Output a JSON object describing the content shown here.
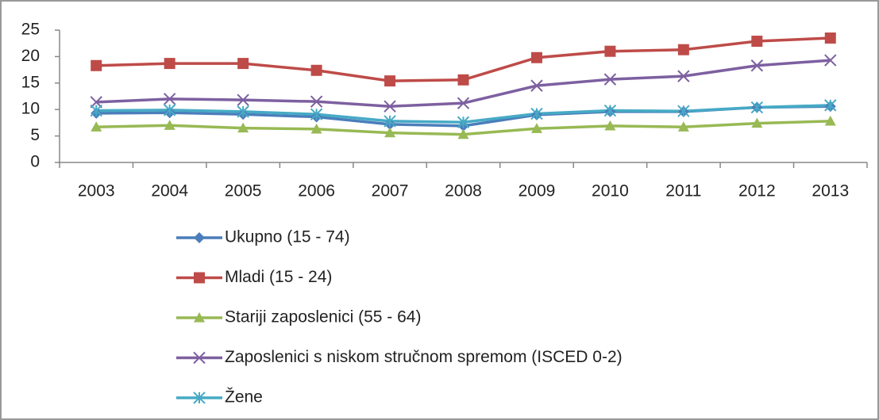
{
  "chart_data": {
    "type": "line",
    "categories": [
      "2003",
      "2004",
      "2005",
      "2006",
      "2007",
      "2008",
      "2009",
      "2010",
      "2011",
      "2012",
      "2013"
    ],
    "ylim": [
      0,
      25
    ],
    "yticks": [
      0,
      5,
      10,
      15,
      20,
      25
    ],
    "grid": false,
    "series": [
      {
        "name": "Ukupno (15 - 74)",
        "color": "#4a7ebb",
        "marker": "diamond",
        "values": [
          9.3,
          9.4,
          9.1,
          8.6,
          7.2,
          6.9,
          9.0,
          9.6,
          9.6,
          10.4,
          10.6
        ]
      },
      {
        "name": "Mladi (15 - 24)",
        "color": "#be4b48",
        "marker": "square",
        "values": [
          18.3,
          18.7,
          18.7,
          17.4,
          15.4,
          15.6,
          19.8,
          21.0,
          21.3,
          22.9,
          23.5
        ]
      },
      {
        "name": "Stariji zaposlenici (55 - 64)",
        "color": "#98b954",
        "marker": "triangle",
        "values": [
          6.7,
          7.0,
          6.5,
          6.3,
          5.6,
          5.3,
          6.4,
          6.9,
          6.7,
          7.4,
          7.8
        ]
      },
      {
        "name": "Zaposlenici s niskom stručnom spremom (ISCED 0-2)",
        "color": "#7d60a0",
        "marker": "x",
        "values": [
          11.4,
          12.0,
          11.8,
          11.5,
          10.6,
          11.2,
          14.5,
          15.7,
          16.3,
          18.3,
          19.3
        ]
      },
      {
        "name": "Žene",
        "color": "#46aac5",
        "marker": "star",
        "values": [
          9.8,
          9.9,
          9.6,
          9.1,
          7.8,
          7.6,
          9.2,
          9.8,
          9.7,
          10.4,
          10.8
        ]
      }
    ]
  }
}
